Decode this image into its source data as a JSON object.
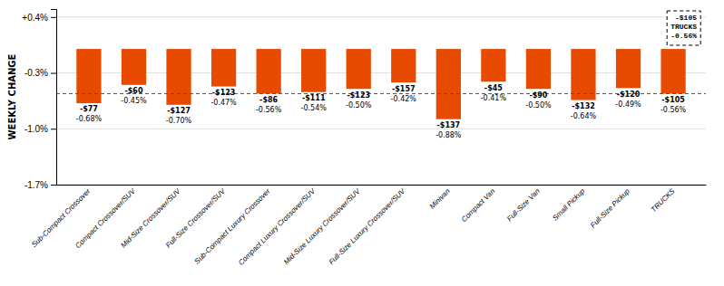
{
  "chart_data": {
    "type": "bar",
    "categories": [
      "Sub-Compact Crossover",
      "Compact Crossover/SUV",
      "Mid-Size Crossover/SUV",
      "Full-Size Crossover/SUV",
      "Sub-Compact Luxury Crossover",
      "Compact Luxury Crossover/SUV",
      "Mid-Size Luxury Crossover/SUV",
      "Full-Size Luxury Crossover/SUV",
      "Minivan",
      "Compact Van",
      "Full-Size Van",
      "Small Pickup",
      "Full-Size Pickup",
      "TRUCKS"
    ],
    "values": [
      -0.68,
      -0.45,
      -0.7,
      -0.47,
      -0.56,
      -0.54,
      -0.5,
      -0.42,
      -0.88,
      -0.41,
      -0.5,
      -0.64,
      -0.49,
      -0.56
    ],
    "value_labels": [
      "-0.68%",
      "-0.45%",
      "-0.70%",
      "-0.47%",
      "-0.56%",
      "-0.54%",
      "-0.50%",
      "-0.42%",
      "-0.88%",
      "-0.41%",
      "-0.50%",
      "-0.64%",
      "-0.49%",
      "-0.56%"
    ],
    "data_labels": true,
    "dollar_values": [
      -77,
      -60,
      -127,
      -123,
      -86,
      -111,
      -123,
      -157,
      -137,
      -45,
      -90,
      -132,
      -120,
      -105
    ],
    "dollar_labels": [
      "-$77",
      "-$60",
      "-$127",
      "-$123",
      "-$86",
      "-$111",
      "-$123",
      "-$157",
      "-$137",
      "-$45",
      "-$90",
      "-$132",
      "-$120",
      "-$105"
    ],
    "color": "#E84A00",
    "ylabel": "WEEKLY CHANGE",
    "ylim": [
      -1.7,
      0.5
    ],
    "yticks": [
      {
        "value": 0.4,
        "label": "+0.4%"
      },
      {
        "value": -0.3,
        "label": "-0.3%"
      },
      {
        "value": -1.0,
        "label": "-1.0%"
      },
      {
        "value": -1.7,
        "label": "-1.7%"
      }
    ],
    "grid": true,
    "reference_line": -0.56,
    "annotation": "-$105\nTRUCKS\n-0.56%"
  }
}
